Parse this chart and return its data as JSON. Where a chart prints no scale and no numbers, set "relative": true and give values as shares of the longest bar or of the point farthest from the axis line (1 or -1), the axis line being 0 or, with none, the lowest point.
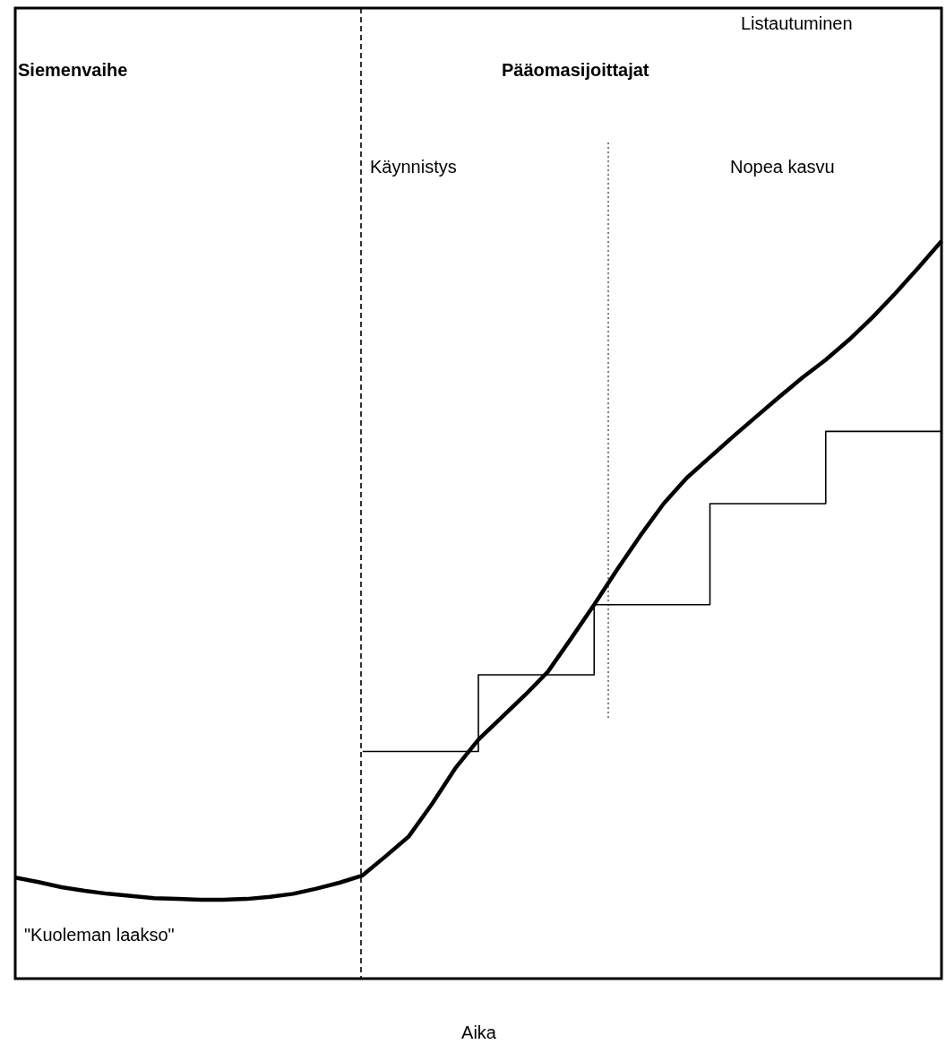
{
  "chart_data": {
    "type": "line",
    "relative": true,
    "xlabel": "Aika",
    "categories": [
      null,
      null,
      null,
      null,
      null,
      null,
      null,
      null,
      null,
      null,
      null,
      null,
      null,
      null,
      null,
      null,
      null,
      null,
      null,
      null,
      null,
      null,
      null,
      null,
      null,
      null,
      null,
      null,
      null,
      null,
      null,
      null,
      null,
      null,
      null,
      null,
      null,
      null,
      null,
      null,
      null
    ],
    "series": [
      {
        "color": "#000000",
        "values": [
          0.137,
          0.131,
          0.124,
          0.119,
          0.115,
          0.112,
          0.109,
          0.108,
          0.107,
          0.107,
          0.108,
          0.111,
          0.115,
          0.122,
          0.13,
          0.14,
          0.166,
          0.193,
          0.237,
          0.285,
          0.324,
          0.354,
          0.384,
          0.416,
          0.461,
          0.507,
          0.555,
          0.601,
          0.644,
          0.679,
          0.707,
          0.735,
          0.762,
          0.789,
          0.815,
          0.839,
          0.866,
          0.896,
          0.929,
          0.964,
          1
        ]
      },
      {
        "type": "step",
        "color": "#000000",
        "values": [
          null,
          null,
          null,
          null,
          null,
          null,
          null,
          null,
          null,
          null,
          null,
          null,
          null,
          null,
          null,
          0.308,
          0.308,
          0.308,
          0.308,
          0.308,
          0.412,
          0.412,
          0.412,
          0.412,
          0.412,
          0.507,
          0.507,
          0.507,
          0.507,
          0.507,
          0.644,
          0.644,
          0.644,
          0.644,
          0.644,
          0.742,
          0.742,
          0.742,
          0.742,
          0.742,
          0.742
        ]
      }
    ],
    "annotations": [
      "Listautuminen",
      "Siemenvaihe",
      "Pääomasijoittajat",
      "Käynnistys",
      "Nopea kasvu",
      "\"Kuoleman laakso\""
    ]
  }
}
